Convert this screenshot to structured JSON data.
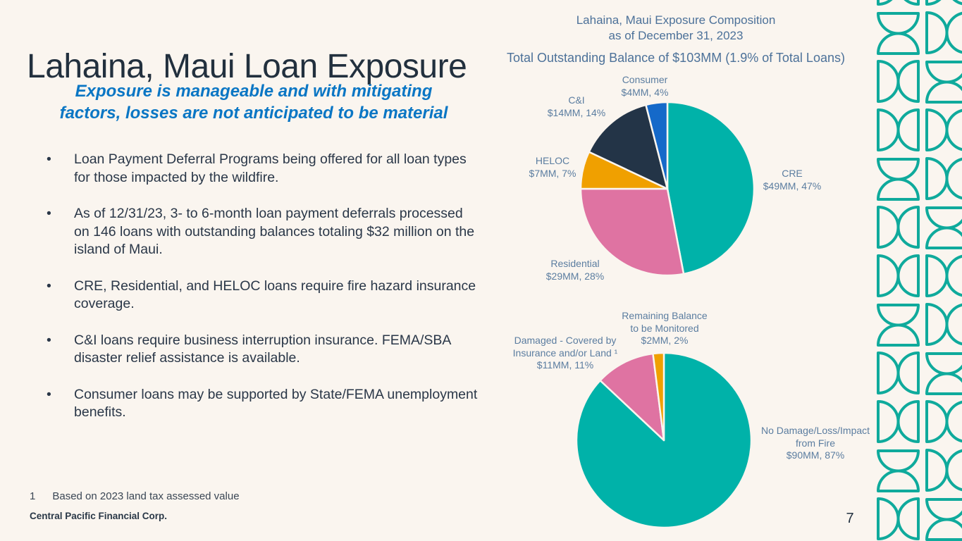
{
  "slide": {
    "title": "Lahaina, Maui Loan Exposure",
    "subtitle": [
      "Exposure is manageable and with mitigating",
      "factors, losses are not anticipated to be material"
    ],
    "bullet_char": "•",
    "bullets": [
      "Loan Payment Deferral Programs being offered for all loan types for those impacted by the wildfire.",
      "As of 12/31/23, 3- to 6-month loan payment deferrals processed on 146 loans with outstanding balances totaling $32 million on the island of Maui.",
      "CRE, Residential, and HELOC loans require fire hazard insurance coverage.",
      "C&I loans require business interruption insurance. FEMA/SBA disaster relief assistance is available.",
      "Consumer loans may be supported by State/FEMA unemployment benefits."
    ],
    "footnote": {
      "number": "1",
      "text": "Based on 2023 land tax assessed value"
    },
    "brand": "Central Pacific Financial Corp.",
    "page_number": "7"
  },
  "chart_header": {
    "title_lines": [
      "Lahaina, Maui Exposure Composition",
      "as of December 31, 2023"
    ],
    "balance_line": "Total Outstanding Balance of $103MM (1.9% of Total Loans)"
  },
  "chart_data": [
    {
      "type": "pie",
      "title": "Lahaina, Maui Exposure Composition as of December 31, 2023",
      "units": "$MM",
      "layout": "starts at 12 o'clock, clockwise",
      "slices": [
        {
          "label": "CRE",
          "value": 49,
          "pct": 47,
          "color": "#00b2a9",
          "label_lines": [
            "CRE",
            "$49MM, 47%"
          ]
        },
        {
          "label": "Residential",
          "value": 29,
          "pct": 28,
          "color": "#df73a2",
          "label_lines": [
            "Residential",
            "$29MM, 28%"
          ]
        },
        {
          "label": "HELOC",
          "value": 7,
          "pct": 7,
          "color": "#f0a000",
          "label_lines": [
            "HELOC",
            "$7MM, 7%"
          ]
        },
        {
          "label": "C&I",
          "value": 14,
          "pct": 14,
          "color": "#233447",
          "label_lines": [
            "C&I",
            "$14MM, 14%"
          ]
        },
        {
          "label": "Consumer",
          "value": 4,
          "pct": 4,
          "color": "#1569c9",
          "label_lines": [
            "Consumer",
            "$4MM, 4%"
          ]
        }
      ]
    },
    {
      "type": "pie",
      "units": "$MM",
      "layout": "starts at 12 o'clock, clockwise",
      "slices": [
        {
          "label": "No Damage/Loss/Impact from Fire",
          "value": 90,
          "pct": 87,
          "color": "#00b2a9",
          "label_lines": [
            "No Damage/Loss/Impact",
            "from Fire",
            "$90MM, 87%"
          ]
        },
        {
          "label": "Damaged - Covered by Insurance and/or Land",
          "value": 11,
          "pct": 11,
          "color": "#df73a2",
          "label_lines": [
            "Damaged - Covered by",
            "Insurance and/or Land ¹",
            "$11MM, 11%"
          ]
        },
        {
          "label": "Remaining Balance to be Monitored",
          "value": 2,
          "pct": 2,
          "color": "#f0a000",
          "label_lines": [
            "Remaining Balance",
            "to be Monitored",
            "$2MM, 2%"
          ]
        }
      ]
    }
  ],
  "colors": {
    "background": "#faf5ef",
    "title_dark": "#22303e",
    "subtitle_blue": "#0a76c4",
    "heading_blue": "#4c7199",
    "label_blue": "#5b7da0",
    "teal": "#00b2a9",
    "pink": "#df73a2",
    "orange": "#f0a000",
    "navy": "#233447",
    "blue": "#1569c9",
    "pattern_stroke": "#0faa9c"
  }
}
